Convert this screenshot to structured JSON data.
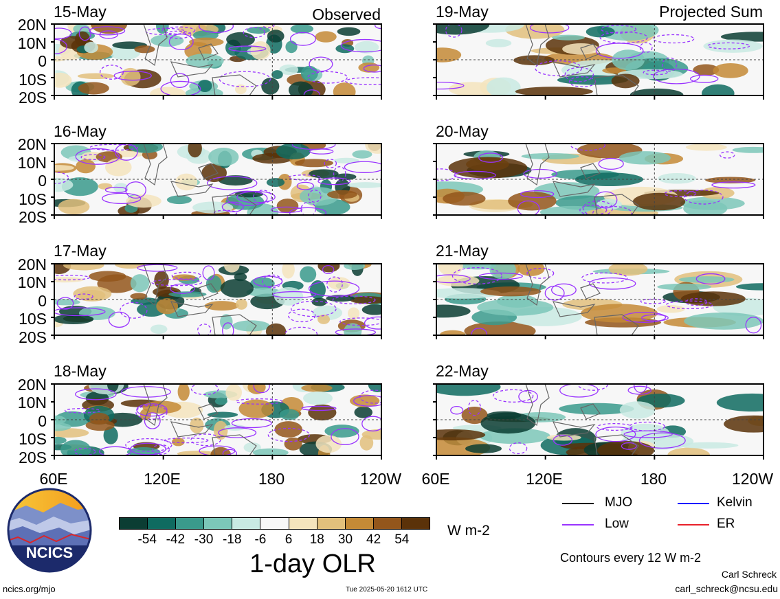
{
  "panels_left": [
    {
      "date": "15-May",
      "tag": "Observed"
    },
    {
      "date": "16-May",
      "tag": ""
    },
    {
      "date": "17-May",
      "tag": ""
    },
    {
      "date": "18-May",
      "tag": ""
    }
  ],
  "panels_right": [
    {
      "date": "19-May",
      "tag": "Projected Sum"
    },
    {
      "date": "20-May",
      "tag": ""
    },
    {
      "date": "21-May",
      "tag": ""
    },
    {
      "date": "22-May",
      "tag": ""
    }
  ],
  "lat_labels": [
    "20N",
    "10N",
    "0",
    "10S",
    "20S"
  ],
  "lon_labels": [
    "60E",
    "120E",
    "180",
    "120W"
  ],
  "colorbar": {
    "colors": [
      "#0b3d33",
      "#0f6b60",
      "#3a9a8c",
      "#7cc7b9",
      "#c9eae3",
      "#f7f7f7",
      "#f4e4bd",
      "#e2c07c",
      "#c48a36",
      "#93561b",
      "#5b3209"
    ],
    "ticks": [
      "-54",
      "-42",
      "-30",
      "-18",
      "-6",
      "6",
      "18",
      "30",
      "42",
      "54"
    ],
    "units": "W m-2",
    "title": "1-day OLR"
  },
  "legend": {
    "items": [
      {
        "label": "MJO",
        "color": "#000000"
      },
      {
        "label": "Kelvin",
        "color": "#0000ff"
      },
      {
        "label": "Low",
        "color": "#9933ff"
      },
      {
        "label": "ER",
        "color": "#e8202a"
      }
    ],
    "contours_note": "Contours every 12 W m-2"
  },
  "logo_text": "NCICS",
  "footer": {
    "url": "ncics.org/mjo",
    "timestamp": "Tue 2025-05-20 1612 UTC",
    "author": "Carl Schreck",
    "email": "carl_schreck@ncsu.edu"
  }
}
